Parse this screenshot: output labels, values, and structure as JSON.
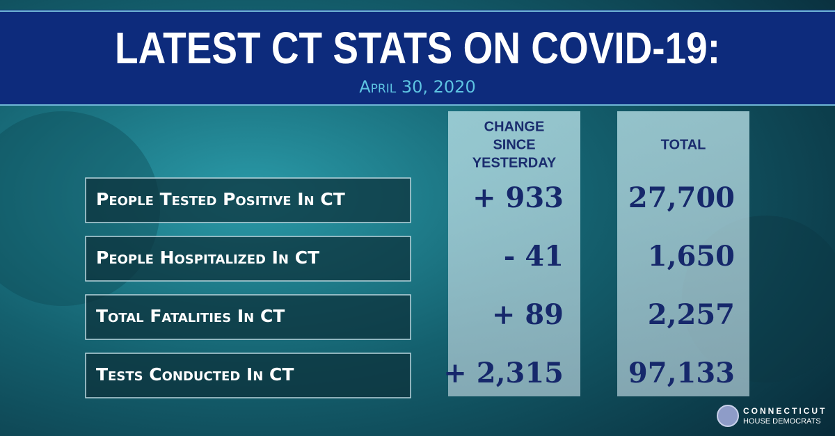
{
  "header": {
    "title": "LATEST CT STATS ON COVID-19:",
    "date": "April 30, 2020"
  },
  "table": {
    "columns": [
      [
        "CHANGE",
        "SINCE",
        "YESTERDAY"
      ],
      [
        "TOTAL"
      ]
    ],
    "rows": [
      [
        "People Tested Positive In CT",
        "+ 933",
        "27,700"
      ],
      [
        "People Hospitalized In CT",
        "- 41",
        "1,650"
      ],
      [
        "Total Fatalities In CT",
        "+ 89",
        "2,257"
      ],
      [
        "Tests Conducted In CT",
        "+ 2,315",
        "97,133"
      ]
    ]
  },
  "logo": {
    "line1": "CONNECTICUT",
    "line2": "HOUSE DEMOCRATS"
  }
}
